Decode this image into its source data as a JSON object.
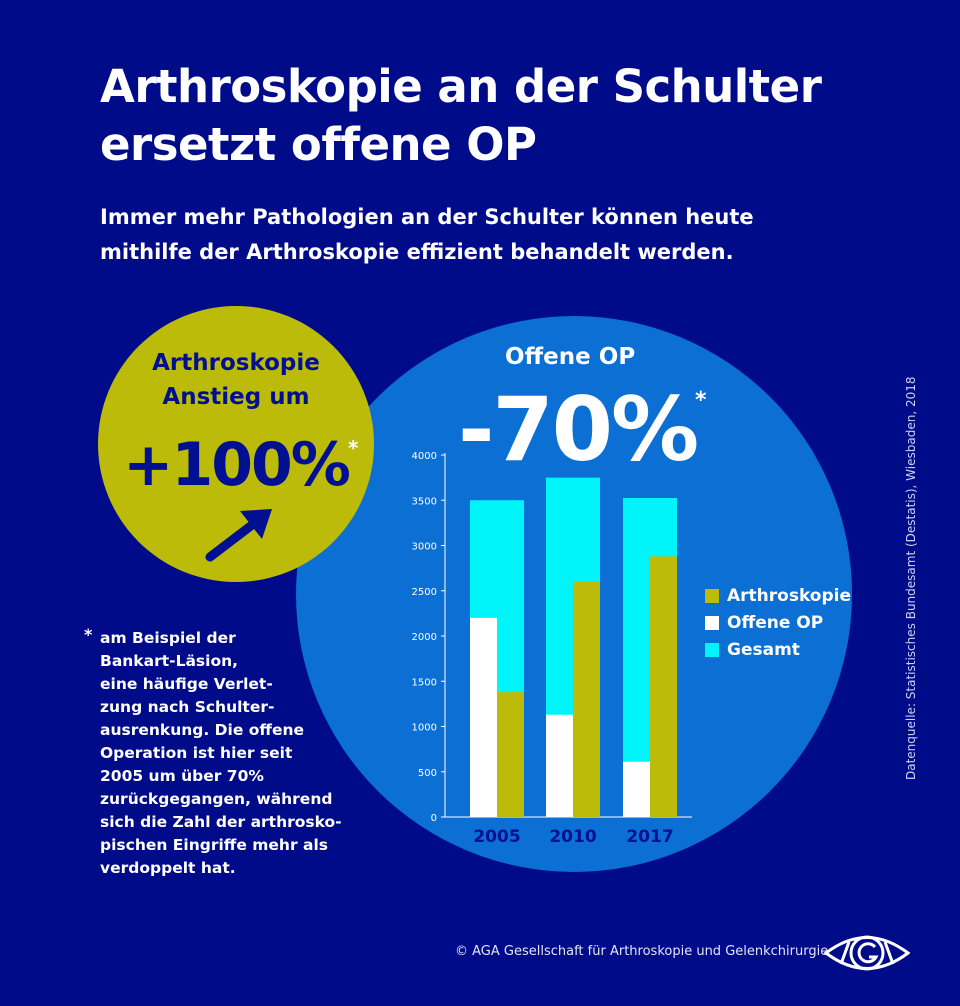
{
  "header": {
    "title_line1": "Arthroskopie an der Schulter",
    "title_line2": "ersetzt offene OP",
    "subtitle_line1": "Immer mehr Pathologien an der Schulter können heute",
    "subtitle_line2": "mithilfe der Arthroskopie effizient behandelt werden."
  },
  "highlight_arthro": {
    "line1": "Arthroskopie",
    "line2": "Anstieg um",
    "value": "+100%",
    "asterisk": "*",
    "icon": "arrow-up-right-icon"
  },
  "highlight_open": {
    "label": "Offene OP",
    "value": "-70%",
    "asterisk": "*"
  },
  "footnote": {
    "asterisk": "*",
    "text": "am Beispiel der\nBankart-Läsion,\neine häufige Verlet-\nzung nach Schulter-\nausrenkung. Die offene\nOperation ist hier seit\n2005 um über 70%\nzurückgegangen, während\nsich die Zahl der arthrosko-\npischen Eingriffe mehr als\nverdoppelt hat."
  },
  "source": "Datenquelle: Statistisches Bundesamt (Destatis), Wiesbaden, 2018",
  "copyright": "© AGA Gesellschaft für Arthroskopie und Gelenkchirurgie",
  "colors": {
    "background": "#000b8a",
    "circle_blue": "#0b6fd4",
    "circle_yellow": "#bdbb0a",
    "arthroskopie": "#bdbb0a",
    "offene_op": "#ffffff",
    "gesamt": "#00f5fb"
  },
  "chart_data": {
    "type": "bar",
    "categories": [
      "2005",
      "2010",
      "2017"
    ],
    "series": [
      {
        "name": "Gesamt",
        "values": [
          3500,
          3750,
          3525
        ],
        "color": "#00f5fb"
      },
      {
        "name": "Offene OP",
        "values": [
          2200,
          1130,
          610
        ],
        "color": "#ffffff"
      },
      {
        "name": "Arthroskopie",
        "values": [
          1380,
          2600,
          2880
        ],
        "color": "#bdbb0a"
      }
    ],
    "legend_order": [
      "Arthroskopie",
      "Offene OP",
      "Gesamt"
    ],
    "yticks": [
      0,
      500,
      1000,
      1500,
      2000,
      2500,
      3000,
      3500,
      4000
    ],
    "ylim": [
      0,
      4000
    ],
    "grid": false,
    "legend_position": "right",
    "xlabel": "",
    "ylabel": ""
  }
}
